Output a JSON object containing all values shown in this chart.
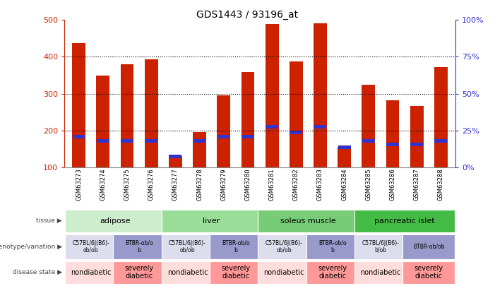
{
  "title": "GDS1443 / 93196_at",
  "samples": [
    "GSM63273",
    "GSM63274",
    "GSM63275",
    "GSM63276",
    "GSM63277",
    "GSM63278",
    "GSM63279",
    "GSM63280",
    "GSM63281",
    "GSM63282",
    "GSM63283",
    "GSM63284",
    "GSM63285",
    "GSM63286",
    "GSM63287",
    "GSM63288"
  ],
  "counts": [
    437,
    350,
    380,
    393,
    130,
    195,
    295,
    358,
    490,
    388,
    492,
    155,
    325,
    283,
    267,
    373
  ],
  "percentile_values": [
    183,
    172,
    172,
    172,
    130,
    172,
    183,
    183,
    210,
    195,
    210,
    155,
    172,
    162,
    162,
    172
  ],
  "ymin": 100,
  "ymax": 500,
  "yticks_left": [
    100,
    200,
    300,
    400,
    500
  ],
  "yticks_right": [
    0,
    25,
    50,
    75,
    100
  ],
  "bar_color": "#cc2200",
  "percentile_color": "#3333cc",
  "tissue_groups": [
    {
      "label": "adipose",
      "start": 0,
      "end": 4,
      "color": "#cceecc"
    },
    {
      "label": "liver",
      "start": 4,
      "end": 8,
      "color": "#99dd99"
    },
    {
      "label": "soleus muscle",
      "start": 8,
      "end": 12,
      "color": "#77cc77"
    },
    {
      "label": "pancreatic islet",
      "start": 12,
      "end": 16,
      "color": "#44bb44"
    }
  ],
  "genotype_groups": [
    {
      "label": "C57BL/6J(B6)-\nob/ob",
      "start": 0,
      "end": 2,
      "color": "#ddddee"
    },
    {
      "label": "BTBR-ob/o\nb",
      "start": 2,
      "end": 4,
      "color": "#9999cc"
    },
    {
      "label": "C57BL/6J(B6)-\nob/ob",
      "start": 4,
      "end": 6,
      "color": "#ddddee"
    },
    {
      "label": "BTBR-ob/o\nb",
      "start": 6,
      "end": 8,
      "color": "#9999cc"
    },
    {
      "label": "C57BL/6J(B6)-\nob/ob",
      "start": 8,
      "end": 10,
      "color": "#ddddee"
    },
    {
      "label": "BTBR-ob/o\nb",
      "start": 10,
      "end": 12,
      "color": "#9999cc"
    },
    {
      "label": "C57BL/6J(B6)-\nb/ob",
      "start": 12,
      "end": 14,
      "color": "#ddddee"
    },
    {
      "label": "BTBR-ob/ob",
      "start": 14,
      "end": 16,
      "color": "#9999cc"
    }
  ],
  "disease_groups": [
    {
      "label": "nondiabetic",
      "start": 0,
      "end": 2,
      "color": "#ffdddd"
    },
    {
      "label": "severely\ndiabetic",
      "start": 2,
      "end": 4,
      "color": "#ff9999"
    },
    {
      "label": "nondiabetic",
      "start": 4,
      "end": 6,
      "color": "#ffdddd"
    },
    {
      "label": "severely\ndiabetic",
      "start": 6,
      "end": 8,
      "color": "#ff9999"
    },
    {
      "label": "nondiabetic",
      "start": 8,
      "end": 10,
      "color": "#ffdddd"
    },
    {
      "label": "severely\ndiabetic",
      "start": 10,
      "end": 12,
      "color": "#ff9999"
    },
    {
      "label": "nondiabetic",
      "start": 12,
      "end": 14,
      "color": "#ffdddd"
    },
    {
      "label": "severely\ndiabetic",
      "start": 14,
      "end": 16,
      "color": "#ff9999"
    }
  ],
  "row_labels": [
    "tissue",
    "genotype/variation",
    "disease state"
  ],
  "legend_count_color": "#cc2200",
  "legend_percentile_color": "#3333cc",
  "left_axis_color": "#cc2200",
  "right_axis_color": "#3333cc"
}
